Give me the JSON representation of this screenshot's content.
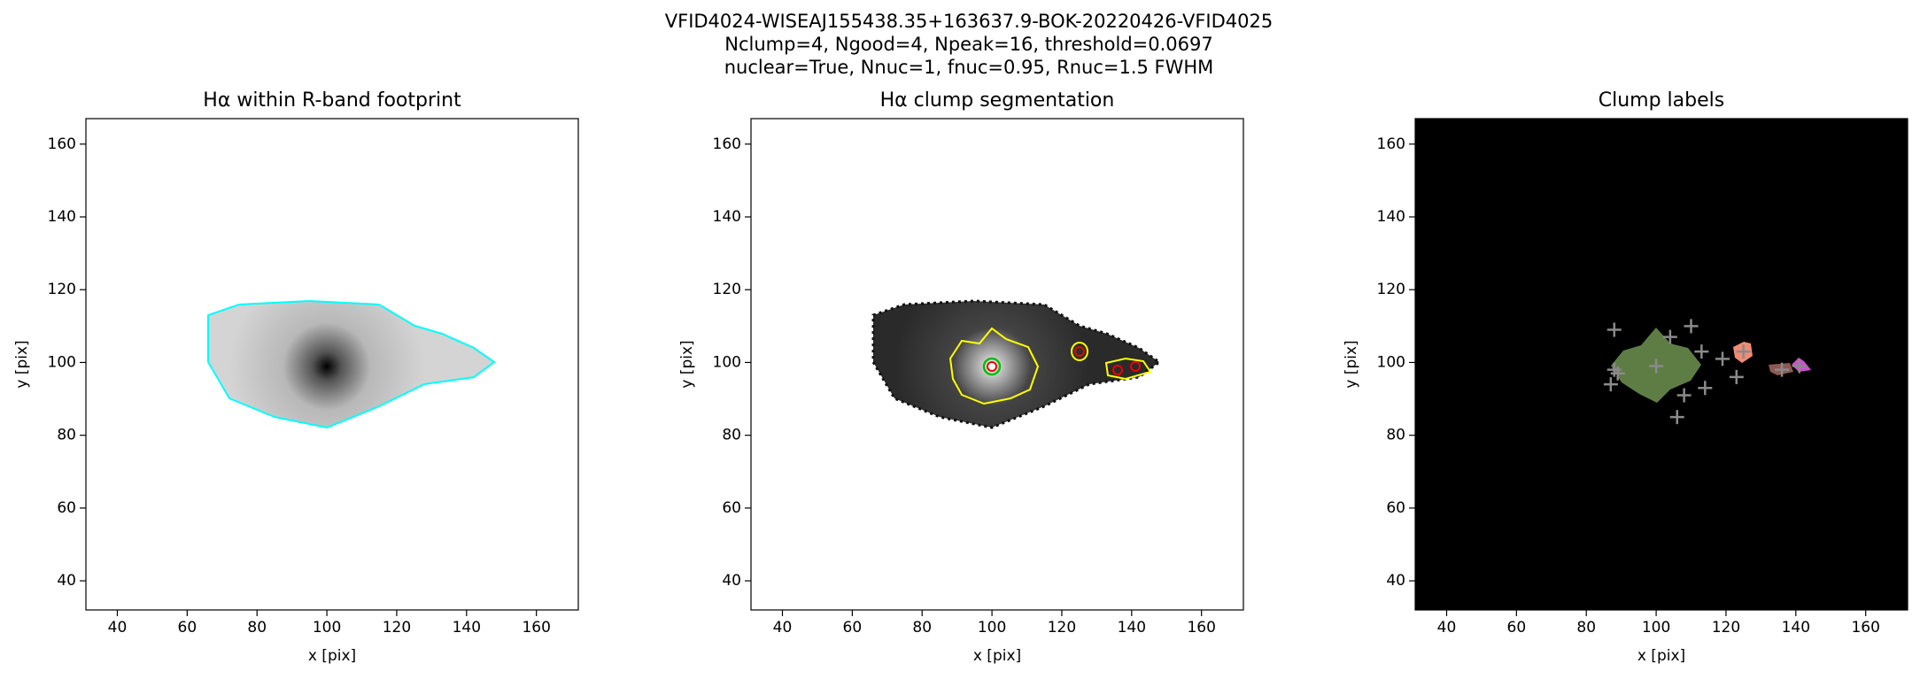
{
  "suptitle": [
    "VFID4024-WISEAJ155438.35+163637.9-BOK-20220426-VFID4025",
    "Nclump=4, Ngood=4, Npeak=16, threshold=0.0697",
    "nuclear=True, Nnuc=1, fnuc=0.95, Rnuc=1.5 FWHM"
  ],
  "chart_data": [
    {
      "type": "image",
      "title": "Hα within R-band footprint",
      "xlabel": "x [pix]",
      "ylabel": "y [pix]",
      "xlim": [
        31,
        172
      ],
      "ylim": [
        32,
        167
      ],
      "xticks": [
        40,
        60,
        80,
        100,
        120,
        140,
        160
      ],
      "yticks": [
        40,
        60,
        80,
        100,
        120,
        140,
        160
      ],
      "background": "#ffffff"
    },
    {
      "type": "image",
      "title": "Hα clump segmentation",
      "xlabel": "x [pix]",
      "ylabel": "y [pix]",
      "xlim": [
        31,
        172
      ],
      "ylim": [
        32,
        167
      ],
      "xticks": [
        40,
        60,
        80,
        100,
        120,
        140,
        160
      ],
      "yticks": [
        40,
        60,
        80,
        100,
        120,
        140,
        160
      ],
      "background": "#ffffff"
    },
    {
      "type": "image",
      "title": "Clump labels",
      "xlabel": "x [pix]",
      "ylabel": "y [pix]",
      "xlim": [
        31,
        172
      ],
      "ylim": [
        32,
        167
      ],
      "xticks": [
        40,
        60,
        80,
        100,
        120,
        140,
        160
      ],
      "yticks": [
        40,
        60,
        80,
        100,
        120,
        140,
        160
      ],
      "background": "#000000",
      "peaks": {
        "color": "#8a8a8a",
        "x": [
          88,
          104,
          110,
          100,
          88,
          89,
          87,
          106,
          108,
          114,
          119,
          123,
          113,
          125,
          136,
          141
        ],
        "y": [
          109,
          107,
          110,
          99,
          98,
          97,
          94,
          85,
          91,
          93,
          101,
          96,
          103,
          103,
          98,
          99
        ]
      }
    }
  ]
}
